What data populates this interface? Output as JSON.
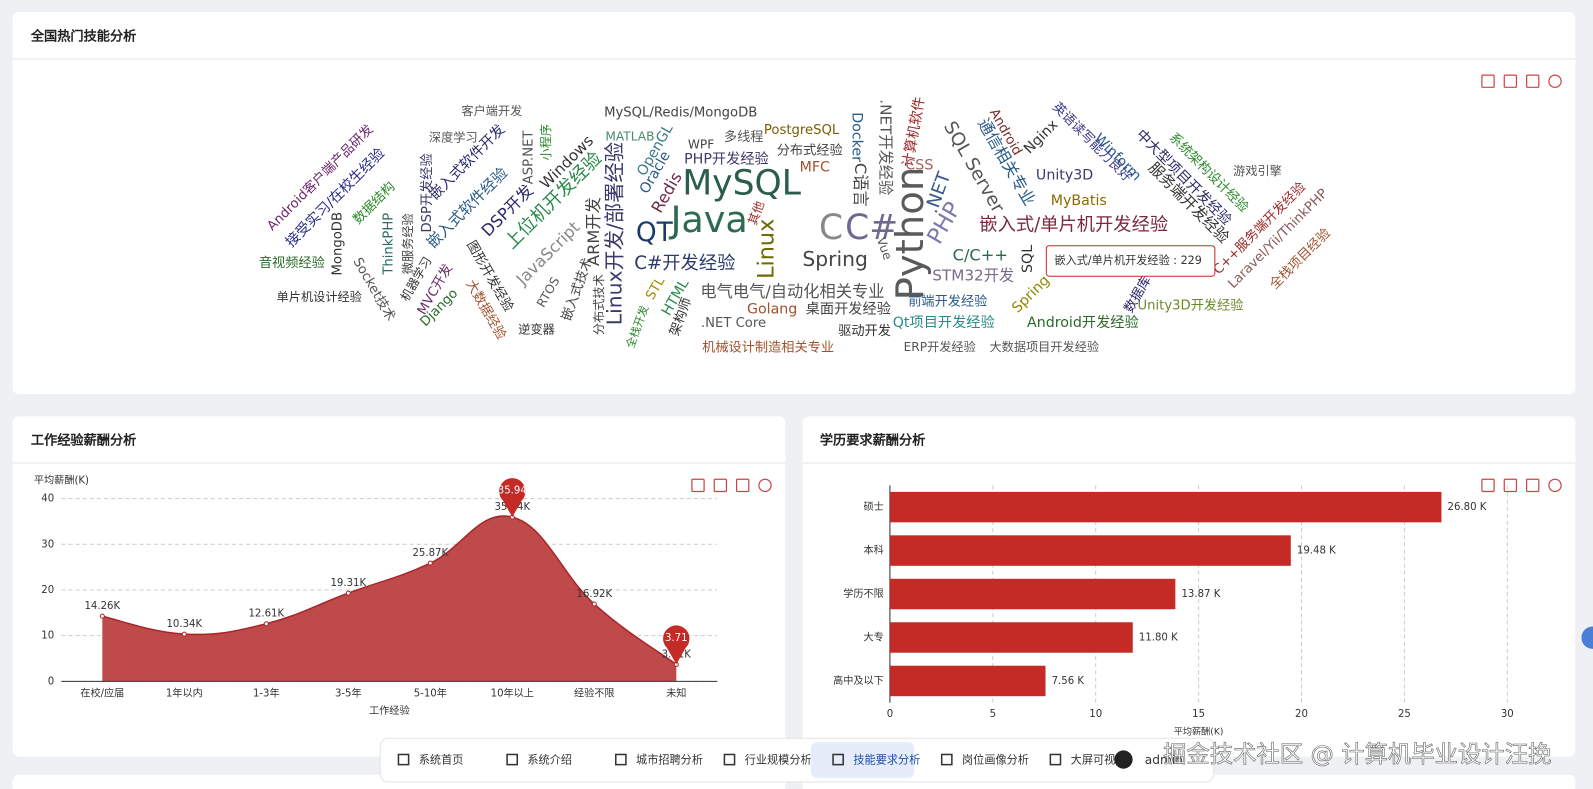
{
  "panels": {
    "skills": {
      "title": "全国热门技能分析"
    },
    "experience": {
      "title": "工作经验薪酬分析"
    },
    "education": {
      "title": "学历要求薪酬分析"
    }
  },
  "wordcloud": {
    "words": [
      "MySQL",
      "Java",
      "Python",
      "C#",
      "C",
      "Linux",
      "QT",
      "Spring",
      "C#开发经验",
      "PHP",
      ".NET",
      "SQL Server",
      "嵌入式/单片机开发经验",
      "C/C++",
      "STM32开发",
      "Linux开发/部署经验",
      "ARM开发",
      "上位机开发经验",
      "DSP开发",
      "JavaScript",
      "嵌入式软件开发",
      "嵌入式软件经验",
      "Windows",
      "ASP.NET",
      "小程序",
      "深度学习",
      "客户端开发",
      "MySQL/Redis/MongoDB",
      "MATLAB",
      "OpenGL",
      "Oracle",
      "Redis",
      "WPF",
      "多线程",
      "PostgreSQL",
      "PHP开发经验",
      "分布式经验",
      "MFC",
      "Docker",
      "C语言",
      ".NET开发经验",
      "计算机软件",
      "CSS",
      "Vue",
      "其他",
      "电气电气/自动化相关专业",
      "Golang",
      "桌面开发经验",
      ".NET Core",
      "驱动开发",
      "机械设计制造相关专业",
      "架构师",
      "HTML",
      "STL",
      "全栈开发",
      "分布式技术",
      "嵌入式技术",
      "RTOS",
      "逆变器",
      "大数据经验",
      "图形开发经验",
      "Django",
      "MVC开发",
      "机器学习",
      "微服务经验",
      "DSP开发经验",
      "ThinkPHP",
      "Socket技术",
      "MongoDB",
      "数据结构",
      "接受实习/在校生经验",
      "Android客户端产品研发",
      "音视频经验",
      "单片机设计经验",
      "通信相关专业",
      "Android",
      "Nginx",
      "Unity3D",
      "MyBatis",
      "英语读写能力良好",
      "Winform",
      "中大型项目开发经验",
      "系统架构设计经验",
      "服务端开发经验",
      "游戏引擎",
      "Laravel/Yii/ThinkPHP",
      "C++服务端开发经验",
      "全栈项目经验",
      "Unity3D开发经验",
      "Android开发经验",
      "Qt项目开发经验",
      "前端开发经验",
      "ERP开发经验",
      "大数据项目开发经验",
      "SQL",
      "Spring",
      "数据库"
    ],
    "tooltip": "嵌入式/单片机开发经验 : 229"
  },
  "chart_data": [
    {
      "type": "line",
      "y_label": "平均薪酬(K)",
      "x_label": "工作经验",
      "color": "#a8262a",
      "area_color": "#b83b3b",
      "categories": [
        "在校/应届",
        "1年以内",
        "1-3年",
        "3-5年",
        "5-10年",
        "10年以上",
        "经验不限",
        "未知"
      ],
      "values": [
        14.26,
        10.34,
        12.61,
        19.31,
        25.87,
        35.94,
        16.92,
        3.71
      ],
      "value_labels": [
        "14.26K",
        "10.34K",
        "12.61K",
        "19.31K",
        "25.87K",
        "35.94K",
        "16.92K",
        "3.71K"
      ],
      "ylim": [
        0,
        40
      ],
      "yticks": [
        0,
        10,
        20,
        30,
        40
      ],
      "grid": true
    },
    {
      "type": "hbar",
      "x_label": "平均薪酬(K)",
      "color": "#c42a26",
      "categories": [
        "硕士",
        "本科",
        "学历不限",
        "大专",
        "高中及以下"
      ],
      "values": [
        26.8,
        19.48,
        13.87,
        11.8,
        7.56
      ],
      "value_labels": [
        "26.80 K",
        "19.48 K",
        "13.87 K",
        "11.80 K",
        "7.56 K"
      ],
      "xlim": [
        0,
        30
      ],
      "xticks": [
        0,
        5,
        10,
        15,
        20,
        25,
        30
      ],
      "grid": true
    }
  ],
  "nav": {
    "items": [
      "系统首页",
      "系统介绍",
      "城市招聘分析",
      "行业规模分析",
      "技能要求分析",
      "岗位画像分析",
      "大屏可视化"
    ],
    "user": "admin"
  },
  "watermark": "掘金技术社区 @ 计算机毕业设计汪挽"
}
